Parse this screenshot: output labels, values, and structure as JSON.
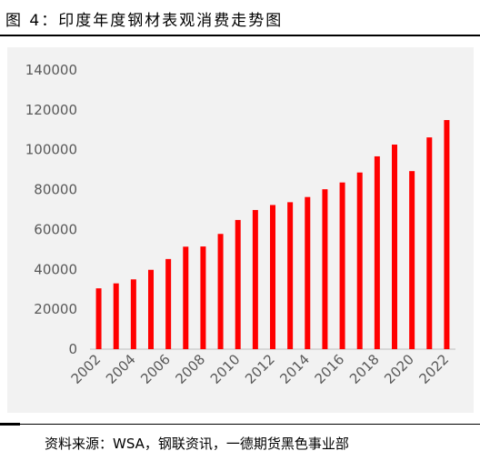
{
  "figure": {
    "title": "图 4：印度年度钢材表观消费走势图",
    "source": "资料来源：WSA，钢联资讯，一德期货黑色事业部"
  },
  "chart_data": {
    "type": "bar",
    "title": "",
    "xlabel": "",
    "ylabel": "",
    "ylim": [
      0,
      140000
    ],
    "yticks": [
      0,
      20000,
      40000,
      60000,
      80000,
      100000,
      120000,
      140000
    ],
    "x": [
      2002,
      2003,
      2004,
      2005,
      2006,
      2007,
      2008,
      2009,
      2010,
      2011,
      2012,
      2013,
      2014,
      2015,
      2016,
      2017,
      2018,
      2019,
      2020,
      2021,
      2022
    ],
    "x_tick_labels": [
      "2002",
      "2004",
      "2006",
      "2008",
      "2010",
      "2012",
      "2014",
      "2016",
      "2018",
      "2020",
      "2022"
    ],
    "values": [
      30500,
      33000,
      35000,
      39800,
      45200,
      51400,
      51500,
      57800,
      64800,
      69800,
      72300,
      73700,
      76300,
      80200,
      83600,
      88600,
      96700,
      102600,
      89300,
      106200,
      114900
    ],
    "bar_color": "#ff0000",
    "grid": false,
    "legend": "none"
  }
}
